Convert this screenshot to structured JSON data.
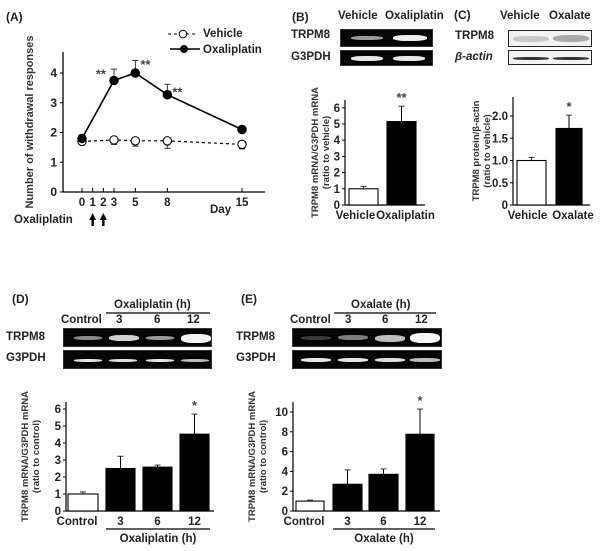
{
  "chart_data": [
    {
      "panel": "(A)",
      "type": "line",
      "title": "",
      "xlabel": "Day",
      "ylabel": "Number of withdrawal responses",
      "x_ticks": [
        0,
        1,
        2,
        3,
        5,
        8,
        15
      ],
      "y_ticks": [
        0,
        1,
        2,
        3,
        4
      ],
      "ylim": [
        0,
        4.6
      ],
      "legend": [
        "Vehicle",
        "Oxaliplatin"
      ],
      "legend_position": "top-right",
      "annotation": "Oxaliplatin",
      "annotation_arrows_days": [
        1,
        2
      ],
      "series": [
        {
          "name": "Vehicle",
          "style": "dashed-open-circle",
          "x": [
            0,
            3,
            5,
            8,
            15
          ],
          "values": [
            1.7,
            1.75,
            1.72,
            1.72,
            1.6
          ],
          "err": [
            0.12,
            0.15,
            0.18,
            0.25,
            0.15
          ],
          "err_dir": "down",
          "sig": [
            "",
            "",
            "",
            "",
            ""
          ]
        },
        {
          "name": "Oxaliplatin",
          "style": "solid-filled-circle",
          "x": [
            0,
            3,
            5,
            8,
            15
          ],
          "values": [
            1.8,
            3.75,
            4.0,
            3.27,
            2.1
          ],
          "err": [
            0.12,
            0.38,
            0.42,
            0.35,
            0.1
          ],
          "err_dir": "up",
          "sig": [
            "",
            "**",
            "**",
            "**",
            ""
          ]
        }
      ]
    },
    {
      "panel": "(B)",
      "type": "bar",
      "categories": [
        "Vehicle",
        "Oxaliplatin"
      ],
      "values": [
        1.0,
        5.15
      ],
      "err": [
        0.15,
        0.95
      ],
      "sig": [
        "",
        "**"
      ],
      "fills": [
        "#ffffff",
        "#000000"
      ],
      "ylabel": "TRPM8 mRNA/G3PDH mRNA (ratio to vehicle)",
      "y_ticks": [
        0,
        1,
        2,
        3,
        4,
        5,
        6
      ],
      "ylim": [
        0,
        6.4
      ],
      "gel_lanes": [
        "Vehicle",
        "Oxaliplatin"
      ],
      "gel_rows": [
        "TRPM8",
        "G3PDH"
      ]
    },
    {
      "panel": "(C)",
      "type": "bar",
      "categories": [
        "Vehicle",
        "Oxalate"
      ],
      "values": [
        1.0,
        1.72
      ],
      "err": [
        0.07,
        0.3
      ],
      "sig": [
        "",
        "*"
      ],
      "fills": [
        "#ffffff",
        "#000000"
      ],
      "ylabel": "TRPM8 protein/β-actin (ratio to vehicle)",
      "y_ticks": [
        "0",
        "0.5",
        "1.0",
        "1.5",
        "2.0"
      ],
      "y_tick_values": [
        0,
        0.5,
        1.0,
        1.5,
        2.0
      ],
      "ylim": [
        0,
        2.35
      ],
      "blot_lanes": [
        "Vehicle",
        "Oxalate"
      ],
      "blot_rows": [
        "TRPM8",
        "β-actin"
      ]
    },
    {
      "panel": "(D)",
      "type": "bar",
      "categories": [
        "Control",
        "3",
        "6",
        "12"
      ],
      "group_label": "Oxaliplatin (h)",
      "values": [
        1.0,
        2.5,
        2.58,
        4.52
      ],
      "err": [
        0.12,
        0.72,
        0.12,
        1.18
      ],
      "sig": [
        "",
        "",
        "",
        "*"
      ],
      "fills": [
        "#ffffff",
        "#000000",
        "#000000",
        "#000000"
      ],
      "ylabel": "TRPM8 mRNA/G3PDH mRNA (ratio to control)",
      "y_ticks": [
        0,
        1,
        2,
        3,
        4,
        5,
        6
      ],
      "ylim": [
        0,
        6.4
      ],
      "gel_lanes": [
        "Control",
        "3",
        "6",
        "12"
      ],
      "gel_rows": [
        "TRPM8",
        "G3PDH"
      ]
    },
    {
      "panel": "(E)",
      "type": "bar",
      "categories": [
        "Control",
        "3",
        "6",
        "12"
      ],
      "group_label": "Oxalate (h)",
      "values": [
        1.0,
        2.7,
        3.7,
        7.75
      ],
      "err": [
        0.1,
        1.45,
        0.55,
        2.55
      ],
      "sig": [
        "",
        "",
        "",
        "*"
      ],
      "fills": [
        "#ffffff",
        "#000000",
        "#000000",
        "#000000"
      ],
      "ylabel": "TRPM8 mRNA/G3PDH mRNA (ratio to control)",
      "y_ticks": [
        0,
        2,
        4,
        6,
        8,
        10
      ],
      "ylim": [
        0,
        11
      ],
      "gel_lanes": [
        "Control",
        "3",
        "6",
        "12"
      ],
      "gel_rows": [
        "TRPM8",
        "G3PDH"
      ]
    }
  ],
  "panels": {
    "a": {
      "label": "(A)",
      "legend_vehicle": "Vehicle",
      "legend_oxaliplatin": "Oxaliplatin",
      "ylabel": "Number of withdrawal responses",
      "xlabel": "Day",
      "treatment": "Oxaliplatin"
    },
    "b": {
      "label": "(B)",
      "lane1": "Vehicle",
      "lane2": "Oxaliplatin",
      "row1": "TRPM8",
      "row2": "G3PDH",
      "ylabel1": "TRPM8 mRNA/G3PDH mRNA",
      "ylabel2": "(ratio to vehicle)"
    },
    "c": {
      "label": "(C)",
      "lane1": "Vehicle",
      "lane2": "Oxalate",
      "row1": "TRPM8",
      "row2": "β-actin",
      "ylabel1": "TRPM8 protein/β-actin",
      "ylabel2": "(ratio to vehicle)"
    },
    "d": {
      "label": "(D)",
      "group": "Oxaliplatin (h)",
      "lane0": "Control",
      "lane1": "3",
      "lane2": "6",
      "lane3": "12",
      "row1": "TRPM8",
      "row2": "G3PDH",
      "ylabel1": "TRPM8 mRNA/G3PDH mRNA",
      "ylabel2": "(ratio to control)"
    },
    "e": {
      "label": "(E)",
      "group": "Oxalate (h)",
      "lane0": "Control",
      "lane1": "3",
      "lane2": "6",
      "lane3": "12",
      "row1": "TRPM8",
      "row2": "G3PDH",
      "ylabel1": "TRPM8 mRNA/G3PDH mRNA",
      "ylabel2": "(ratio to control)"
    }
  }
}
